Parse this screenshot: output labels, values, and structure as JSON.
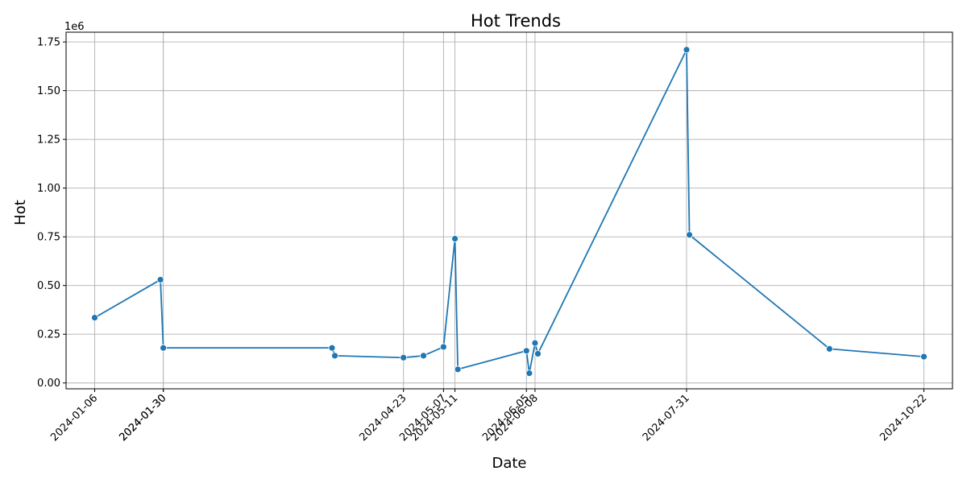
{
  "chart_data": {
    "type": "line",
    "title": "Hot Trends",
    "xlabel": "Date",
    "ylabel": "Hot",
    "y_offset_label": "1e6",
    "x_ticks": [
      "2024-01-06",
      "2024-01-30",
      "2024-01-30",
      "2024-04-23",
      "2024-05-07",
      "2024-05-11",
      "2024-06-05",
      "2024-06-08",
      "2024-07-31",
      "2024-10-22"
    ],
    "y_ticks": [
      0.0,
      0.25,
      0.5,
      0.75,
      1.0,
      1.25,
      1.5,
      1.75
    ],
    "y_tick_labels": [
      "0.00",
      "0.25",
      "0.50",
      "0.75",
      "1.00",
      "1.25",
      "1.50",
      "1.75"
    ],
    "xlim": [
      "2023-12-27",
      "2024-11-01"
    ],
    "ylim": [
      -0.03,
      1.8
    ],
    "y_scale": 1000000,
    "grid": true,
    "line_color": "#1f77b4",
    "marker_color": "#1f77b4",
    "series": [
      {
        "x": [
          "2024-01-06",
          "2024-01-29",
          "2024-01-30",
          "2024-03-29",
          "2024-03-30",
          "2024-04-23",
          "2024-04-30",
          "2024-05-07",
          "2024-05-11",
          "2024-05-12",
          "2024-06-05",
          "2024-06-06",
          "2024-06-08",
          "2024-06-09",
          "2024-07-31",
          "2024-08-01",
          "2024-09-19",
          "2024-10-22"
        ],
        "y": [
          335000,
          530000,
          180000,
          180000,
          140000,
          130000,
          140000,
          185000,
          740000,
          70000,
          165000,
          50000,
          205000,
          150000,
          1710000,
          760000,
          175000,
          135000
        ]
      }
    ]
  }
}
